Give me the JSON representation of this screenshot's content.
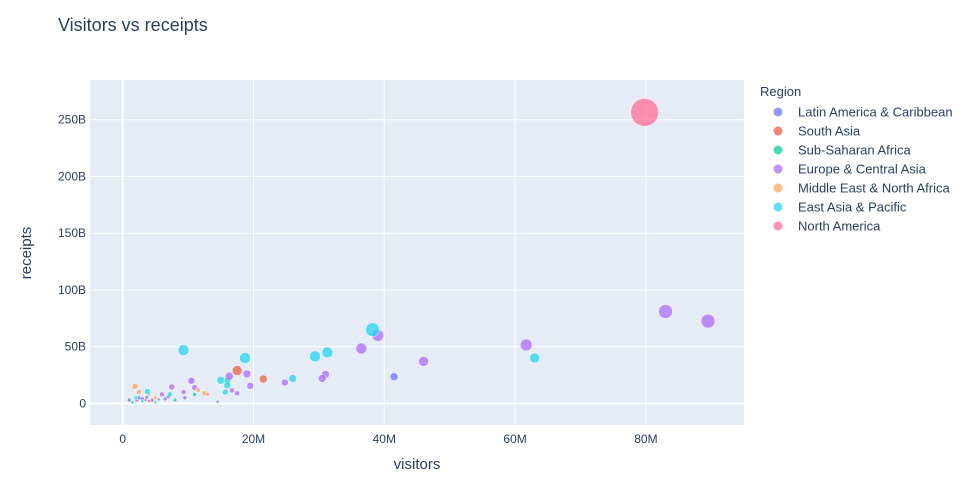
{
  "chart_data": {
    "type": "scatter",
    "title": "Visitors vs receipts",
    "xlabel": "visitors",
    "ylabel": "receipts",
    "xlim": [
      -5000000,
      95000000
    ],
    "ylim": [
      -19000000000,
      285000000000
    ],
    "x_ticks": [
      0,
      20000000,
      40000000,
      60000000,
      80000000
    ],
    "x_tick_labels": [
      "0",
      "20M",
      "40M",
      "60M",
      "80M"
    ],
    "y_ticks": [
      0,
      50000000000,
      100000000000,
      150000000000,
      200000000000,
      250000000000
    ],
    "y_tick_labels": [
      "0",
      "50B",
      "100B",
      "150B",
      "200B",
      "250B"
    ],
    "grid": true,
    "legend": {
      "title": "Region",
      "position": "right"
    },
    "series": [
      {
        "name": "Latin America & Caribbean",
        "color": "#636efa",
        "points": [
          [
            41500000,
            23500000000,
            8
          ],
          [
            1000000,
            3000000000,
            4
          ],
          [
            2500000,
            5000000000,
            4
          ],
          [
            3000000,
            4000000000,
            4
          ],
          [
            4500000,
            2000000000,
            3
          ],
          [
            6500000,
            4000000000,
            4
          ],
          [
            9500000,
            5000000000,
            4
          ],
          [
            1500000,
            1500000000,
            3
          ],
          [
            2000000,
            2000000000,
            3
          ],
          [
            3500000,
            3000000000,
            3
          ],
          [
            5500000,
            3500000000,
            3
          ],
          [
            7000000,
            6000000000,
            4
          ],
          [
            14500000,
            1500000000,
            3
          ]
        ]
      },
      {
        "name": "South Asia",
        "color": "#ef553b",
        "points": [
          [
            17500000,
            29000000000,
            10
          ],
          [
            21500000,
            21500000000,
            8
          ],
          [
            2000000,
            3000000000,
            3
          ],
          [
            4000000,
            2000000000,
            3
          ]
        ]
      },
      {
        "name": "Sub-Saharan Africa",
        "color": "#00cc96",
        "points": [
          [
            16000000,
            20000000000,
            7
          ],
          [
            3000000,
            2000000000,
            3
          ],
          [
            5000000,
            1000000000,
            3
          ],
          [
            8000000,
            3000000000,
            4
          ],
          [
            11000000,
            8000000000,
            4
          ],
          [
            1500000,
            1000000000,
            3
          ]
        ]
      },
      {
        "name": "Europe & Central Asia",
        "color": "#ab63fa",
        "points": [
          [
            89500000,
            72500000000,
            14
          ],
          [
            83000000,
            81000000000,
            14
          ],
          [
            61700000,
            51500000000,
            12
          ],
          [
            46000000,
            37000000000,
            10
          ],
          [
            39000000,
            60000000000,
            12
          ],
          [
            36500000,
            48500000000,
            11
          ],
          [
            31000000,
            25500000000,
            8
          ],
          [
            30500000,
            22000000000,
            8
          ],
          [
            24800000,
            18500000000,
            7
          ],
          [
            19500000,
            15500000000,
            7
          ],
          [
            19000000,
            26000000000,
            8
          ],
          [
            16300000,
            24000000000,
            8
          ],
          [
            17500000,
            9000000000,
            5
          ],
          [
            16700000,
            11500000000,
            5
          ],
          [
            10500000,
            20000000000,
            7
          ],
          [
            7500000,
            14500000000,
            6
          ],
          [
            9300000,
            10000000000,
            5
          ],
          [
            6000000,
            8000000000,
            5
          ],
          [
            11000000,
            14000000000,
            6
          ],
          [
            3700000,
            5500000000,
            4
          ],
          [
            4500000,
            3000000000,
            4
          ],
          [
            2200000,
            2500000000,
            3
          ]
        ]
      },
      {
        "name": "Middle East & North Africa",
        "color": "#ffa15a",
        "points": [
          [
            1900000,
            15000000000,
            6
          ],
          [
            12500000,
            9000000000,
            5
          ],
          [
            11500000,
            12000000000,
            5
          ],
          [
            4000000,
            8000000000,
            4
          ],
          [
            5000000,
            5000000000,
            4
          ],
          [
            2500000,
            10000000000,
            5
          ],
          [
            13000000,
            8000000000,
            4
          ]
        ]
      },
      {
        "name": "East Asia & Pacific",
        "color": "#19d3f3",
        "points": [
          [
            38200000,
            65000000000,
            14
          ],
          [
            9300000,
            47000000000,
            11
          ],
          [
            18700000,
            40000000000,
            11
          ],
          [
            31300000,
            45000000000,
            11
          ],
          [
            29400000,
            41500000000,
            11
          ],
          [
            63000000,
            40000000000,
            10
          ],
          [
            26000000,
            22000000000,
            8
          ],
          [
            15000000,
            20500000000,
            8
          ],
          [
            16000000,
            16000000000,
            7
          ],
          [
            15700000,
            10000000000,
            6
          ],
          [
            3800000,
            10500000000,
            6
          ],
          [
            7200000,
            8000000000,
            5
          ],
          [
            2000000,
            5000000000,
            4
          ]
        ]
      },
      {
        "name": "North America",
        "color": "#ff6692",
        "points": [
          [
            79800000,
            256500000000,
            28
          ]
        ]
      }
    ]
  }
}
